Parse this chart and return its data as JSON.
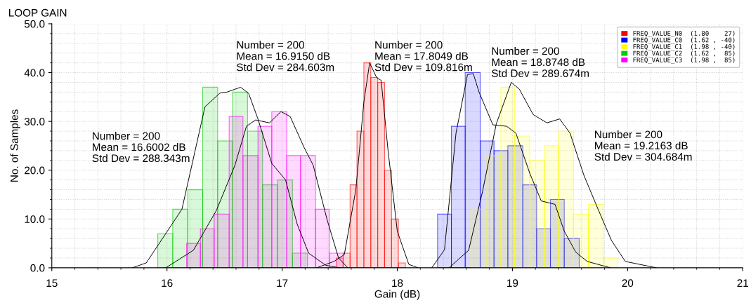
{
  "chart_data": {
    "type": "histogram",
    "title": "LOOP GAIN",
    "xlabel": "Gain (dB)",
    "ylabel": "No. of Samples",
    "xlim": [
      15,
      21
    ],
    "xticks": [
      15,
      16,
      17,
      18,
      19,
      20,
      21
    ],
    "ylim": [
      0,
      50
    ],
    "yticks": [
      {
        "value": 0,
        "label": "0.0"
      },
      {
        "value": 10,
        "label": "10.0"
      },
      {
        "value": 20,
        "label": "20.0"
      },
      {
        "value": 30,
        "label": "30.0"
      },
      {
        "value": 40,
        "label": "40.0"
      },
      {
        "value": 50,
        "label": "50.0"
      }
    ],
    "grid": true,
    "legend": "top right",
    "line_style": "solid",
    "marker": "none",
    "annotations": [
      "Number = 200\nMean = 16.6002 dB\nStd Dev = 288.343m",
      "Number = 200\nMean = 16.9150 dB\nStd Dev = 284.603m",
      "Number = 200\nMean = 17.8049 dB\nStd Dev = 109.816m",
      "Number = 200\nMean = 18.8748 dB\nStd Dev = 289.674m",
      "Number = 200\nMean = 19.2163 dB\nStd Dev = 304.684m"
    ],
    "series": [
      {
        "name": "FREQ_VALUE_N0  (1.80    27)",
        "color": "#ff0000",
        "bins": [
          17.47,
          17.53,
          17.59,
          17.65,
          17.71,
          17.77,
          17.83,
          17.89,
          17.95,
          18.01,
          18.07
        ],
        "values": [
          2,
          3,
          17,
          28,
          42,
          39,
          38,
          20,
          10,
          1
        ]
      },
      {
        "name": "FREQ_VALUE_C0  (1.62 , -40)",
        "color": "#0000ff",
        "bins": [
          18.35,
          18.47,
          18.59,
          18.72,
          18.84,
          18.96,
          19.09,
          19.21,
          19.33,
          19.45,
          19.58
        ],
        "values": [
          11,
          29,
          40,
          26,
          24,
          25,
          17,
          8,
          14,
          6
        ]
      },
      {
        "name": "FREQ_VALUE_C1  (1.98 , -40)",
        "color": "#ffff00",
        "bins": [
          18.64,
          18.77,
          18.9,
          19.02,
          19.15,
          19.28,
          19.4,
          19.53,
          19.66,
          19.79,
          19.91
        ],
        "values": [
          12,
          23,
          37,
          27,
          22,
          25,
          28,
          11,
          13,
          2
        ]
      },
      {
        "name": "FREQ_VALUE_C2  (1.62 ,  85)",
        "color": "#00cc00",
        "bins": [
          15.92,
          16.05,
          16.18,
          16.31,
          16.44,
          16.57,
          16.7,
          16.83,
          16.96,
          17.09,
          17.22
        ],
        "values": [
          7,
          12,
          16,
          37,
          26,
          36,
          28,
          17,
          18,
          3
        ]
      },
      {
        "name": "FREQ_VALUE_C3  (1.98 ,  85)",
        "color": "#ff00ff",
        "bins": [
          16.17,
          16.29,
          16.41,
          16.54,
          16.66,
          16.79,
          16.91,
          17.04,
          17.16,
          17.29,
          17.41,
          17.53
        ],
        "values": [
          5,
          8,
          11,
          31,
          23,
          29,
          32,
          23,
          23,
          12,
          3
        ]
      },
      {
        "type": "line",
        "color": "#000000",
        "x": [
          15.7,
          15.82,
          16.13,
          16.33,
          16.46,
          16.52,
          16.64,
          16.71,
          16.79,
          16.91,
          17.03,
          17.13,
          17.23,
          17.38,
          17.5
        ],
        "values": [
          0,
          1,
          12,
          33,
          35.8,
          36,
          37,
          35.7,
          30.5,
          21.4,
          18,
          9,
          3,
          0.5,
          0
        ]
      },
      {
        "type": "line",
        "color": "#000000",
        "x": [
          15.99,
          16.23,
          16.43,
          16.59,
          16.69,
          16.77,
          16.89,
          16.99,
          17.07,
          17.19,
          17.27,
          17.39,
          17.49,
          17.57
        ],
        "values": [
          0,
          3.6,
          11.8,
          21,
          29,
          30.3,
          29.7,
          32,
          31,
          24.7,
          21,
          9.9,
          2,
          0
        ]
      },
      {
        "type": "line",
        "color": "#000000",
        "x": [
          17.3,
          17.45,
          17.54,
          17.64,
          17.71,
          17.76,
          17.82,
          17.86,
          17.92,
          18.0,
          18.1,
          18.18
        ],
        "values": [
          0,
          1.3,
          2.7,
          16,
          34,
          42,
          39,
          38.4,
          24,
          7.5,
          0.7,
          0
        ]
      },
      {
        "type": "line",
        "color": "#000000",
        "x": [
          18.3,
          18.41,
          18.51,
          18.61,
          18.66,
          18.71,
          18.83,
          18.95,
          19.03,
          19.15,
          19.25,
          19.37,
          19.45,
          19.55,
          19.65,
          19.85
        ],
        "values": [
          0,
          3.7,
          27.6,
          39.6,
          39.8,
          36,
          29.3,
          29,
          27.6,
          19.4,
          13.7,
          13,
          7.5,
          3.2,
          1.3,
          0
        ]
      },
      {
        "type": "line",
        "color": "#000000",
        "x": [
          18.45,
          18.62,
          18.74,
          18.86,
          18.99,
          19.06,
          19.18,
          19.3,
          19.41,
          19.5,
          19.62,
          19.74,
          19.86,
          19.98,
          20.25
        ],
        "values": [
          0,
          3.6,
          15.6,
          29.5,
          38,
          36.6,
          31.4,
          29.7,
          30.5,
          27.6,
          19,
          12.2,
          5.6,
          1.3,
          0
        ]
      }
    ]
  }
}
